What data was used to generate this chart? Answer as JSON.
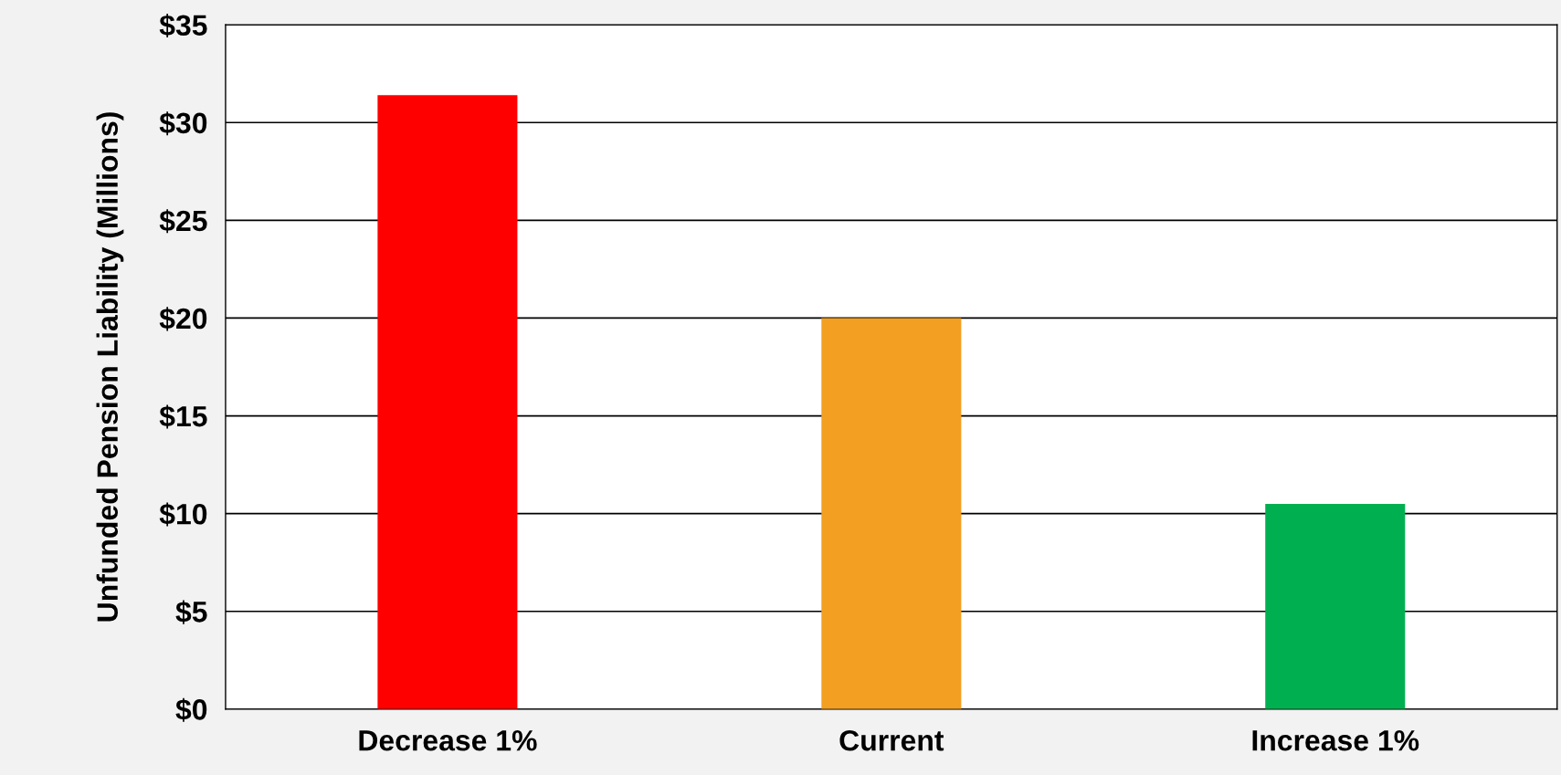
{
  "chart_data": {
    "type": "bar",
    "ylabel": "Unfunded Pension Liability (Millions)",
    "categories": [
      "Decrease 1%",
      "Current",
      "Increase 1%"
    ],
    "values": [
      31.4,
      20.0,
      10.5
    ],
    "colors": [
      "#ff0000",
      "#f29f22",
      "#00b050"
    ],
    "ylim": [
      0,
      35
    ],
    "yticks": [
      {
        "value": 0,
        "label": "$0"
      },
      {
        "value": 5,
        "label": "$5"
      },
      {
        "value": 10,
        "label": "$10"
      },
      {
        "value": 15,
        "label": "$15"
      },
      {
        "value": 20,
        "label": "$20"
      },
      {
        "value": 25,
        "label": "$25"
      },
      {
        "value": 30,
        "label": "$30"
      },
      {
        "value": 35,
        "label": "$35"
      }
    ],
    "grid": "y",
    "legend": false
  }
}
